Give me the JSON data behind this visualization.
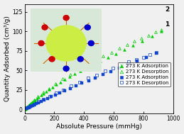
{
  "xlabel": "Absolute Pressure (mmHg)",
  "ylabel": "Quantity Adsorbed (cm³/g)",
  "xlim": [
    0,
    1000
  ],
  "ylim": [
    -5,
    135
  ],
  "xticks": [
    0,
    200,
    400,
    600,
    800,
    1000
  ],
  "yticks": [
    0,
    25,
    50,
    75,
    100,
    125
  ],
  "label2": "2",
  "label1": "1",
  "green_adsorption_x": [
    2,
    4,
    6,
    8,
    10,
    13,
    16,
    20,
    25,
    30,
    36,
    43,
    51,
    60,
    70,
    82,
    95,
    110,
    127,
    145,
    165,
    188,
    213,
    240,
    270,
    303,
    338,
    376,
    418,
    462,
    510,
    560,
    613,
    670,
    730,
    792,
    857,
    920
  ],
  "green_adsorption_y": [
    0.3,
    0.6,
    1.0,
    1.4,
    1.8,
    2.4,
    3.0,
    3.7,
    4.6,
    5.5,
    6.6,
    7.8,
    9.2,
    10.7,
    12.4,
    14.2,
    16.2,
    18.4,
    20.7,
    23.2,
    25.8,
    28.7,
    31.7,
    34.9,
    38.3,
    41.9,
    45.6,
    49.5,
    53.5,
    57.7,
    62.1,
    66.7,
    71.5,
    76.5,
    81.8,
    87.5,
    93.5,
    100
  ],
  "green_desorption_x": [
    920,
    880,
    835,
    788,
    740,
    690,
    638,
    585,
    530,
    474,
    418,
    362,
    308,
    256,
    207,
    163,
    124,
    90,
    62,
    40,
    24,
    13,
    6
  ],
  "green_desorption_y": [
    102,
    99,
    95,
    91,
    87,
    83,
    78,
    73,
    68,
    63,
    57,
    51,
    45,
    39,
    33,
    27,
    22,
    17,
    12,
    8,
    5,
    3,
    1.5
  ],
  "blue_adsorption_x": [
    18,
    25,
    33,
    42,
    53,
    65,
    79,
    95,
    113,
    133,
    156,
    181,
    208,
    238,
    271,
    307,
    345,
    386,
    430,
    477,
    527,
    580,
    636,
    695,
    757,
    821,
    887
  ],
  "blue_adsorption_y": [
    1.5,
    2.2,
    3.0,
    3.9,
    4.9,
    6.1,
    7.4,
    8.9,
    10.5,
    12.3,
    14.3,
    16.5,
    18.9,
    21.4,
    24.2,
    27.1,
    30.2,
    33.5,
    37.0,
    40.7,
    44.5,
    48.5,
    52.8,
    57.3,
    62.0,
    67.0,
    72.0
  ],
  "blue_desorption_x": [
    887,
    845,
    800,
    752,
    702,
    650,
    596,
    540,
    483,
    426,
    369,
    314,
    261,
    212,
    167,
    127,
    92,
    63,
    40,
    24,
    13
  ],
  "blue_desorption_y": [
    73,
    70,
    67,
    64,
    61,
    57,
    53,
    49,
    44,
    40,
    35,
    30,
    25,
    21,
    17,
    13,
    10,
    7,
    5,
    3,
    1.8
  ],
  "green_color": "#00cc00",
  "blue_color": "#1144cc",
  "bg_color": "#f0f0f0",
  "marker_size": 2.8,
  "legend_fontsize": 5.0,
  "axis_fontsize": 6.5,
  "tick_fontsize": 5.5
}
